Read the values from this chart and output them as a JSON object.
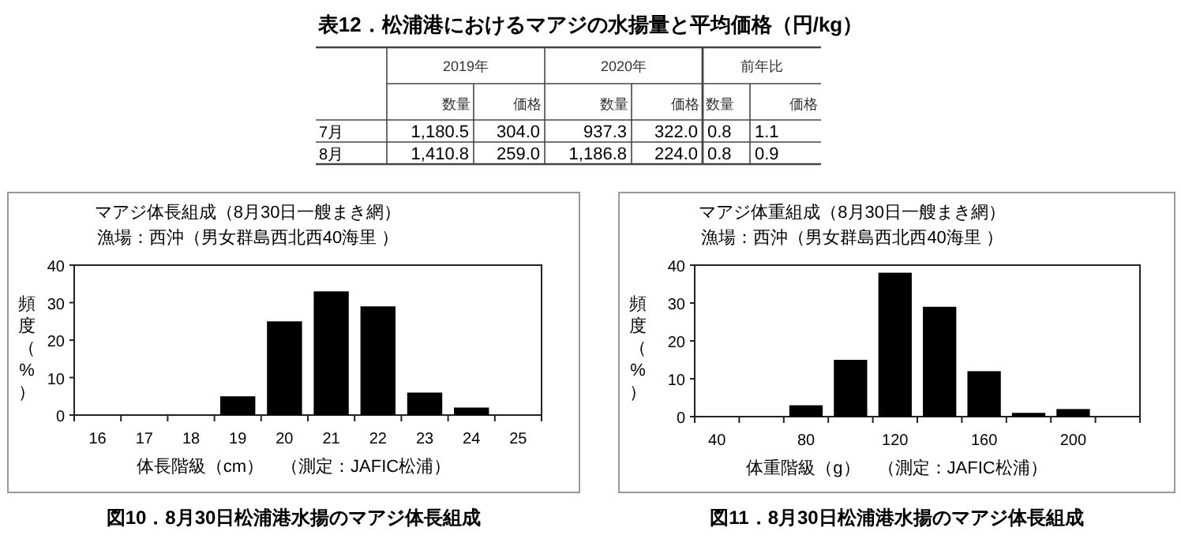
{
  "chart_data": [
    {
      "type": "other",
      "title": "表12．松浦港におけるマアジの水揚量と平均価格（円/kg）",
      "annotations": [
        "2019年",
        "2020年",
        "前年比",
        "数量",
        "価格",
        "数量",
        "価格",
        "数量",
        "価格",
        "7月",
        "1,180.5",
        "304.0",
        "937.3",
        "322.0",
        "0.8",
        "1.1",
        "8月",
        "1,410.8",
        "259.0",
        "1,186.8",
        "224.0",
        "0.8",
        "0.9"
      ]
    },
    {
      "type": "bar",
      "title": "マアジ体長組成（8月30日一艘まき網）",
      "subtitle": "漁場：西沖（男女群島西北西40海里 ）",
      "xlabel": "体長階級（cm）　（測定：JAFIC松浦）",
      "ylabel": "頻度（%）",
      "categories": [
        "16",
        "17",
        "18",
        "19",
        "20",
        "21",
        "22",
        "23",
        "24",
        "25"
      ],
      "values": [
        0,
        0,
        0,
        5,
        25,
        33,
        29,
        6,
        2,
        0
      ],
      "color": "#000000",
      "ylim": [
        0,
        40
      ],
      "yticks": [
        0,
        10,
        20,
        30,
        40
      ],
      "grid": false,
      "annotations": [
        "図10．8月30日松浦港水揚のマアジ体長組成"
      ]
    },
    {
      "type": "bar",
      "title": "マアジ体重組成（8月30日一艘まき網）",
      "subtitle": "漁場：西沖（男女群島西北西40海里 ）",
      "xlabel": "体重階級（g）　（測定：JAFIC松浦）",
      "ylabel": "頻度（%）",
      "categories": [
        "40",
        null,
        "80",
        null,
        "120",
        null,
        "160",
        null,
        "200",
        null
      ],
      "values": [
        0,
        0,
        3,
        15,
        38,
        29,
        12,
        1,
        2,
        0
      ],
      "color": "#000000",
      "ylim": [
        0,
        40
      ],
      "yticks": [
        0,
        10,
        20,
        30,
        40
      ],
      "grid": false,
      "annotations": [
        "図11．8月30日松浦港水揚のマアジ体長組成"
      ]
    }
  ]
}
